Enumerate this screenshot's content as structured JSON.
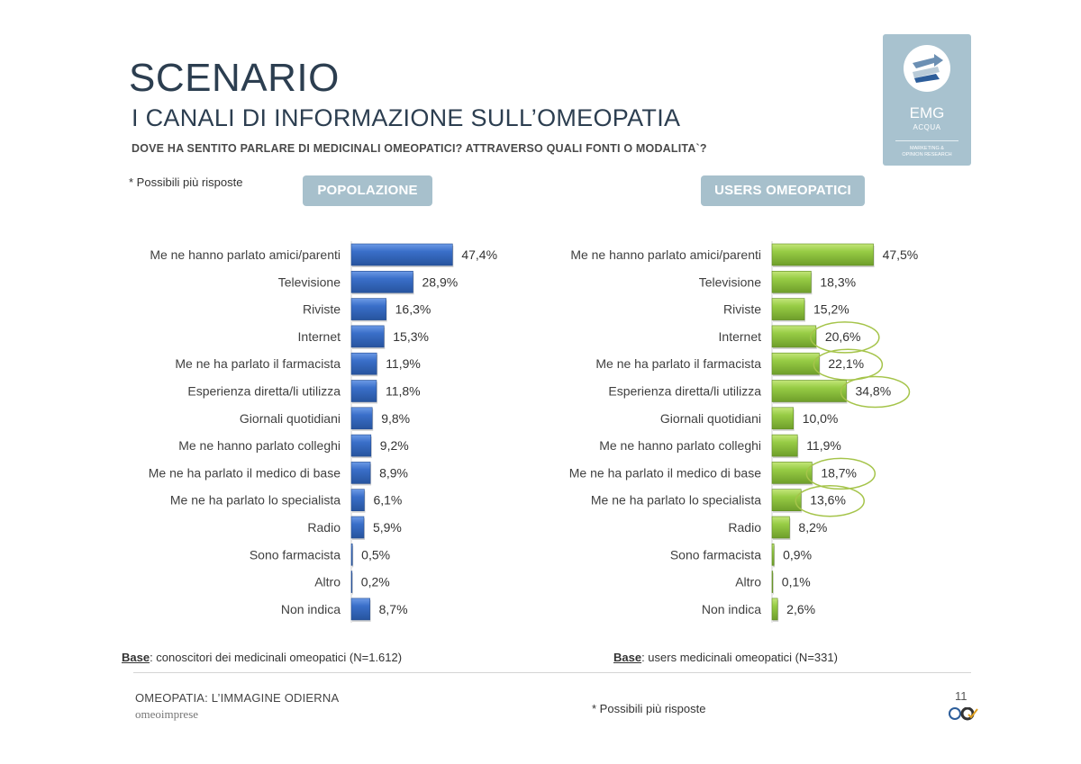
{
  "header": {
    "title": "SCENARIO",
    "subtitle": "I CANALI DI INFORMAZIONE SULL’OMEOPATIA",
    "question": "DOVE HA SENTITO PARLARE DI MEDICINALI OMEOPATICI? ATTRAVERSO QUALI FONTI O MODALITA`?",
    "note": "* Possibili più risposte"
  },
  "logo": {
    "name": "EMG",
    "sub": "ACQUA",
    "tagline_1": "MARKETING &",
    "tagline_2": "OPINION RESEARCH",
    "icon": "arrows-logo-icon"
  },
  "panels": {
    "left_label": "POPOLAZIONE",
    "right_label": "USERS OMEOPATICI"
  },
  "colors": {
    "popolazione": "#3a6fc9",
    "users": "#8fc43a",
    "highlight_ring": "#a5c44a",
    "pill": "#a7c0cc"
  },
  "chart_data": [
    {
      "type": "bar",
      "orientation": "horizontal",
      "title": "POPOLAZIONE",
      "categories": [
        "Me ne hanno parlato amici/parenti",
        "Televisione",
        "Riviste",
        "Internet",
        "Me ne ha parlato il farmacista",
        "Esperienza diretta/li utilizza",
        "Giornali quotidiani",
        "Me ne hanno parlato colleghi",
        "Me ne ha parlato il medico di base",
        "Me ne ha parlato lo specialista",
        "Radio",
        "Sono farmacista",
        "Altro",
        "Non indica"
      ],
      "values": [
        47.4,
        28.9,
        16.3,
        15.3,
        11.9,
        11.8,
        9.8,
        9.2,
        8.9,
        6.1,
        5.9,
        0.5,
        0.2,
        8.7
      ],
      "value_labels": [
        "47,4%",
        "28,9%",
        "16,3%",
        "15,3%",
        "11,9%",
        "11,8%",
        "9,8%",
        "9,2%",
        "8,9%",
        "6,1%",
        "5,9%",
        "0,5%",
        "0,2%",
        "8,7%"
      ],
      "unit": "%",
      "xlim": [
        0,
        50
      ],
      "grid": false,
      "base": "conoscitori dei medicinali omeopatici (N=1.612)"
    },
    {
      "type": "bar",
      "orientation": "horizontal",
      "title": "USERS OMEOPATICI",
      "categories": [
        "Me ne hanno parlato amici/parenti",
        "Televisione",
        "Riviste",
        "Internet",
        "Me ne ha parlato il farmacista",
        "Esperienza diretta/li utilizza",
        "Giornali quotidiani",
        "Me ne hanno parlato colleghi",
        "Me ne ha parlato il medico di base",
        "Me ne ha parlato lo specialista",
        "Radio",
        "Sono farmacista",
        "Altro",
        "Non indica"
      ],
      "values": [
        47.5,
        18.3,
        15.2,
        20.6,
        22.1,
        34.8,
        10.0,
        11.9,
        18.7,
        13.6,
        8.2,
        0.9,
        0.1,
        2.6
      ],
      "value_labels": [
        "47,5%",
        "18,3%",
        "15,2%",
        "20,6%",
        "22,1%",
        "34,8%",
        "10,0%",
        "11,9%",
        "18,7%",
        "13,6%",
        "8,2%",
        "0,9%",
        "0,1%",
        "2,6%"
      ],
      "highlighted": [
        "Internet",
        "Me ne ha parlato il farmacista",
        "Esperienza diretta/li utilizza",
        "Me ne ha parlato il medico di base",
        "Me ne ha parlato lo specialista"
      ],
      "unit": "%",
      "xlim": [
        0,
        50
      ],
      "grid": false,
      "base": "users medicinali omeopatici (N=331)"
    }
  ],
  "bases": {
    "label": "Base",
    "left": ": conoscitori dei medicinali omeopatici (N=1.612)",
    "right": ": users medicinali omeopatici (N=331)"
  },
  "footer": {
    "title": "OMEOPATIA: L’IMMAGINE ODIERNA",
    "brand": "omeoimprese",
    "note": "* Possibili più risposte",
    "page": "11"
  }
}
